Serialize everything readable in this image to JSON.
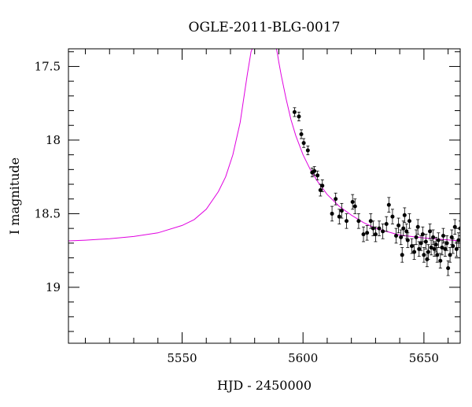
{
  "chart_data": {
    "type": "scatter",
    "title": "OGLE-2011-BLG-0017",
    "xlabel": "HJD - 2450000",
    "ylabel": "I magnitude",
    "xlim": [
      5503,
      5665
    ],
    "ylim": [
      19.38,
      17.38
    ],
    "y_inverted": true,
    "x_ticks": [
      5550,
      5600,
      5650
    ],
    "y_ticks": [
      17.5,
      18,
      18.5,
      19
    ],
    "y_tick_labels": [
      "17.5",
      "18",
      "18.5",
      "19"
    ],
    "grid": false,
    "model_color": "#e000e0",
    "point_color": "#000000",
    "model_curve": {
      "name": "",
      "x": [
        5503,
        5510,
        5520,
        5530,
        5540,
        5550,
        5555,
        5560,
        5565,
        5568,
        5571,
        5574,
        5576,
        5577,
        5578,
        5578.5,
        5579,
        5589,
        5589.5,
        5590,
        5591,
        5593,
        5595,
        5597,
        5600,
        5603,
        5606,
        5610,
        5615,
        5620,
        5625,
        5630,
        5640,
        5650,
        5665
      ],
      "y": [
        18.685,
        18.68,
        18.67,
        18.655,
        18.63,
        18.58,
        18.54,
        18.47,
        18.35,
        18.25,
        18.1,
        17.88,
        17.66,
        17.55,
        17.45,
        17.4,
        17.38,
        17.38,
        17.42,
        17.47,
        17.56,
        17.72,
        17.86,
        17.97,
        18.1,
        18.2,
        18.28,
        18.37,
        18.45,
        18.51,
        18.56,
        18.6,
        18.645,
        18.665,
        18.685
      ]
    },
    "series": [
      {
        "name": "",
        "x": [
          5596.5,
          5598.3,
          5599.3,
          5600.3,
          5602.0,
          5603.8,
          5604.7,
          5606.0,
          5607.2,
          5608.0,
          5612.0,
          5613.5,
          5615.0,
          5616.0,
          5618.0,
          5620.5,
          5621.5,
          5623.0,
          5625.0,
          5626.5,
          5628.0,
          5629.0,
          5630.0,
          5631.5,
          5633.0,
          5634.5,
          5635.5,
          5637.0,
          5638.5,
          5639.5,
          5640.5,
          5641.0,
          5641.5,
          5642.0,
          5642.8,
          5643.3,
          5644.0,
          5645.0,
          5646.0,
          5646.8,
          5647.5,
          5648.0,
          5648.8,
          5649.5,
          5650.0,
          5650.8,
          5651.3,
          5651.8,
          5652.5,
          5653.0,
          5653.8,
          5654.3,
          5655.0,
          5655.5,
          5656.0,
          5656.8,
          5657.5,
          5658.0,
          5658.8,
          5659.5,
          5660.0,
          5660.8,
          5661.5,
          5662.0,
          5662.8,
          5663.5,
          5664.3,
          5665.0
        ],
        "y": [
          17.81,
          17.84,
          17.96,
          18.02,
          18.07,
          18.22,
          18.21,
          18.24,
          18.34,
          18.31,
          18.5,
          18.4,
          18.52,
          18.48,
          18.55,
          18.42,
          18.45,
          18.55,
          18.64,
          18.63,
          18.55,
          18.6,
          18.64,
          18.6,
          18.62,
          18.57,
          18.44,
          18.52,
          18.65,
          18.58,
          18.66,
          18.78,
          18.6,
          18.51,
          18.62,
          18.68,
          18.55,
          18.72,
          18.76,
          18.66,
          18.59,
          18.74,
          18.7,
          18.64,
          18.78,
          18.69,
          18.81,
          18.76,
          18.62,
          18.73,
          18.66,
          18.74,
          18.71,
          18.78,
          18.68,
          18.82,
          18.73,
          18.65,
          18.74,
          18.7,
          18.87,
          18.78,
          18.66,
          18.72,
          18.59,
          18.74,
          18.68,
          18.6
        ],
        "err": [
          0.03,
          0.03,
          0.03,
          0.03,
          0.03,
          0.03,
          0.03,
          0.03,
          0.04,
          0.04,
          0.05,
          0.04,
          0.05,
          0.05,
          0.05,
          0.05,
          0.05,
          0.05,
          0.05,
          0.05,
          0.05,
          0.05,
          0.05,
          0.05,
          0.05,
          0.05,
          0.05,
          0.05,
          0.05,
          0.05,
          0.05,
          0.05,
          0.05,
          0.05,
          0.05,
          0.05,
          0.05,
          0.05,
          0.05,
          0.05,
          0.05,
          0.05,
          0.05,
          0.05,
          0.05,
          0.05,
          0.05,
          0.05,
          0.05,
          0.05,
          0.05,
          0.05,
          0.05,
          0.05,
          0.05,
          0.05,
          0.05,
          0.05,
          0.05,
          0.05,
          0.05,
          0.05,
          0.05,
          0.05,
          0.05,
          0.05,
          0.05,
          0.05
        ]
      }
    ]
  }
}
